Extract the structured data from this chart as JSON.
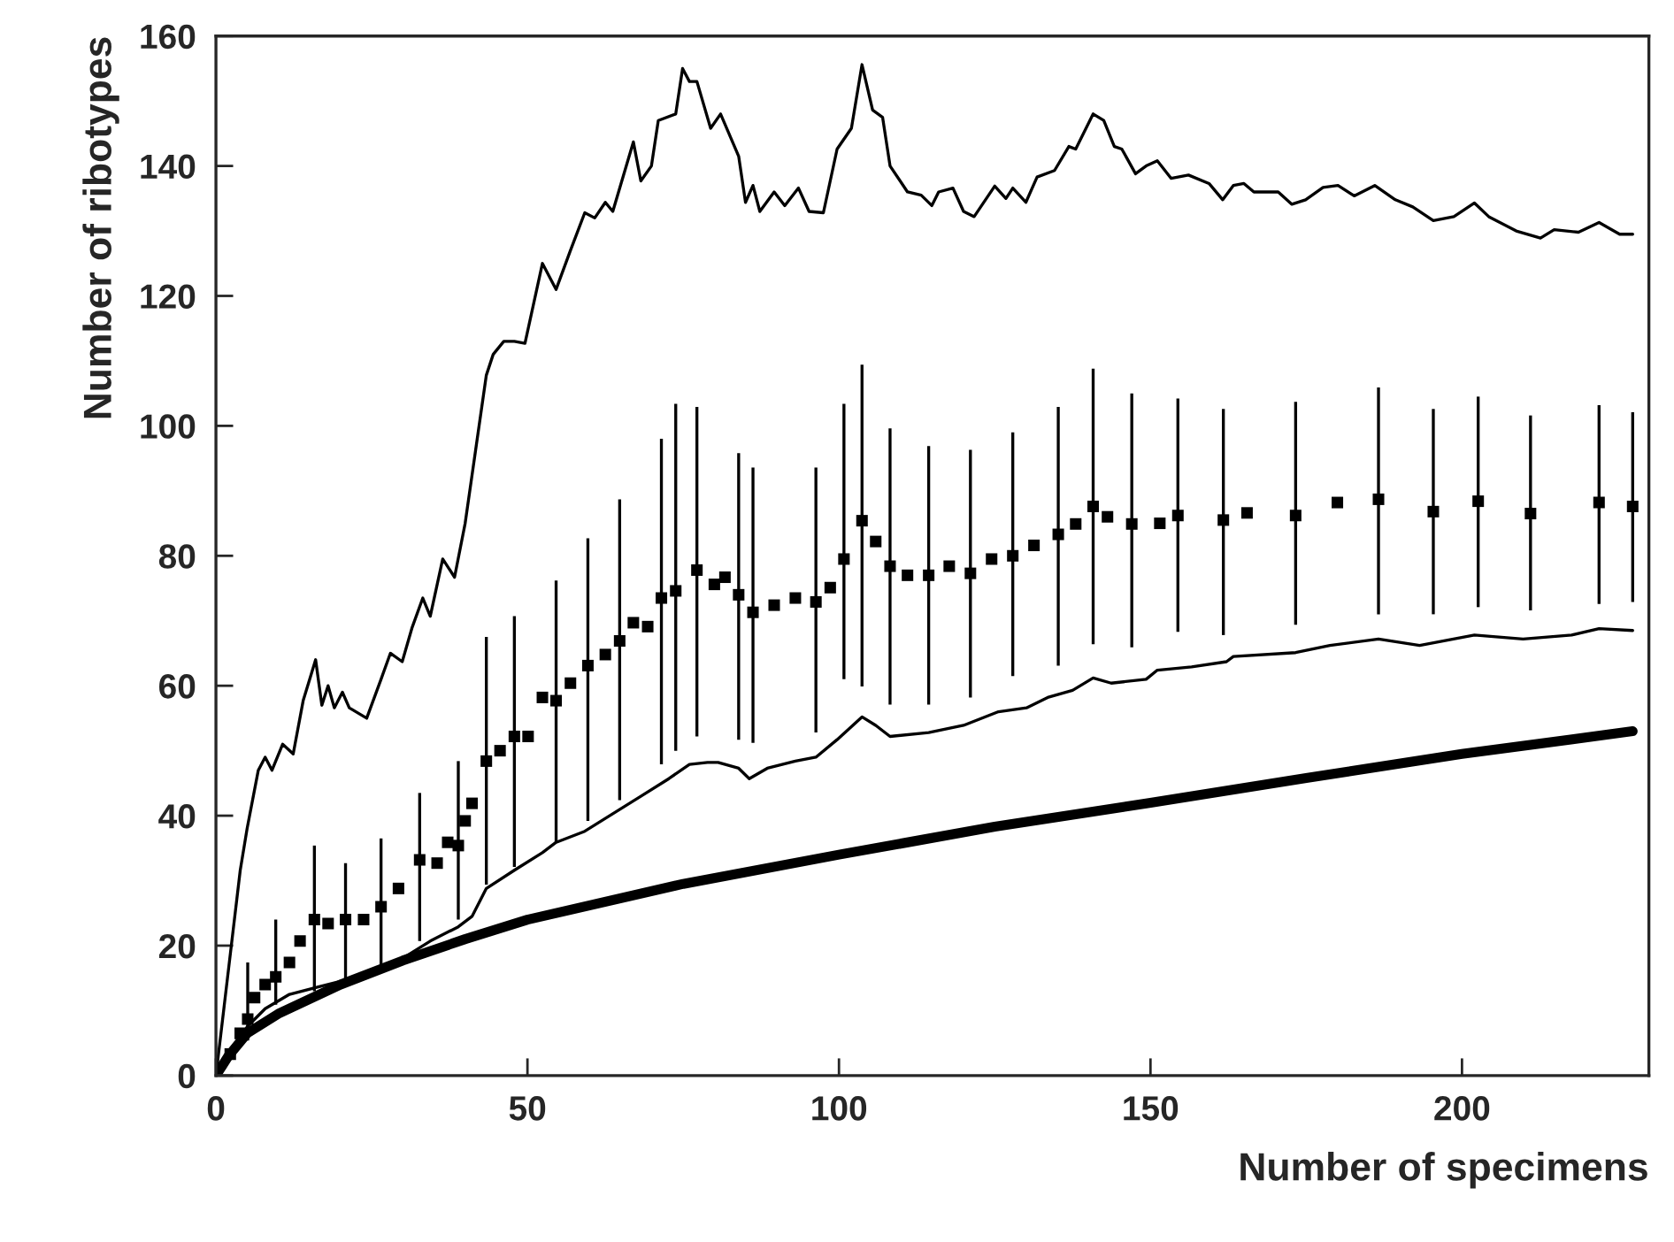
{
  "chart_data": {
    "type": "line",
    "xlabel": "Number of specimens",
    "ylabel": "Number of ribotypes",
    "xlim": [
      0,
      230
    ],
    "xticks": [
      0,
      50,
      100,
      150,
      200
    ],
    "ylim": [
      0,
      160
    ],
    "yticks": [
      0,
      20,
      40,
      60,
      80,
      100,
      120,
      140,
      160
    ],
    "grid": false,
    "legend": false,
    "series": [
      {
        "color": "#000000",
        "line_style": "solid",
        "marker": "none",
        "x": [
          0,
          3.9,
          5,
          6.8,
          7.9,
          9,
          10.7,
          12.4,
          14,
          16,
          17,
          18,
          19,
          20.3,
          21.4,
          24.2,
          26.5,
          28,
          29.9,
          31.5,
          33.2,
          34.4,
          36.4,
          38.3,
          40,
          43.4,
          44.5,
          46.2,
          47.9,
          49.6,
          52.4,
          54.6,
          56.9,
          59.2,
          60.8,
          62.5,
          63.7,
          67,
          68.2,
          69.9,
          71,
          73.8,
          74.9,
          76,
          77.2,
          79.4,
          81,
          83.9,
          85,
          86.2,
          87.3,
          89.6,
          91.3,
          93.5,
          95.2,
          97.5,
          99.7,
          102,
          103.7,
          105.4,
          107,
          108.2,
          111,
          113.2,
          114.9,
          116,
          118.3,
          120,
          121.7,
          125,
          126.8,
          127.9,
          130,
          131.8,
          134.6,
          136.9,
          138,
          140.8,
          142.5,
          144.2,
          145.4,
          147.6,
          149.3,
          151.1,
          153.3,
          156.1,
          159.4,
          161.6,
          163.3,
          165,
          166.6,
          170.5,
          172.7,
          174.9,
          177.7,
          180.1,
          182.7,
          186,
          189.3,
          192.1,
          195.4,
          198.7,
          202,
          204.3,
          208.7,
          212.6,
          214.8,
          218.7,
          222,
          225.3,
          227.4
        ],
        "values": [
          0,
          31.6,
          38,
          47,
          49,
          47,
          51,
          49.5,
          57.7,
          64,
          57,
          60,
          56.6,
          59,
          56.6,
          55,
          61,
          65,
          63.7,
          69,
          73.5,
          70.7,
          79.5,
          76.7,
          85,
          107.8,
          111,
          113,
          113,
          112.7,
          125,
          121,
          127,
          132.8,
          132,
          134.4,
          133,
          143.7,
          137.7,
          140,
          147,
          148,
          155,
          153,
          153,
          145.8,
          148,
          141.5,
          134.4,
          137,
          133,
          136,
          133.9,
          136.6,
          133,
          132.8,
          142.6,
          145.8,
          155.6,
          148.6,
          147.5,
          140,
          136,
          135.5,
          133.9,
          136,
          136.6,
          133,
          132.2,
          136.9,
          135,
          136.6,
          134.4,
          138.3,
          139.3,
          143,
          142.6,
          148,
          147,
          143,
          142.6,
          138.8,
          140,
          140.8,
          138.1,
          138.6,
          137.3,
          134.8,
          137,
          137.3,
          136,
          136,
          134.1,
          134.8,
          136.7,
          137,
          135.4,
          137,
          134.8,
          133.7,
          131.6,
          132.2,
          134.3,
          132.2,
          130,
          128.9,
          130.2,
          129.8,
          131.3,
          129.5,
          129.5
        ]
      },
      {
        "type": "scatter",
        "color": "#000000",
        "marker": "square",
        "x": [
          2.3,
          3.9,
          5.1,
          6.2,
          7.9,
          9.6,
          11.8,
          13.5,
          15.8,
          18,
          20.8,
          23.7,
          26.5,
          29.3,
          32.7,
          35.5,
          37.2,
          38.9,
          40,
          41.1,
          43.4,
          45.6,
          47.9,
          50.1,
          52.4,
          54.6,
          56.9,
          59.7,
          62.5,
          64.8,
          67,
          69.3,
          71.5,
          73.8,
          77.2,
          80,
          81.7,
          83.9,
          86.2,
          89.6,
          93,
          96.3,
          98.6,
          100.8,
          103.7,
          105.9,
          108.2,
          111,
          114.4,
          117.7,
          121.1,
          124.5,
          127.9,
          131.3,
          135.2,
          138,
          140.8,
          143.1,
          147,
          151.5,
          154.4,
          161.7,
          165.5,
          173.3,
          180,
          186.6,
          195.4,
          202.6,
          211,
          222,
          227.4
        ],
        "values": [
          3.3,
          6.5,
          8.7,
          12,
          14,
          15.2,
          17.4,
          20.7,
          24,
          23.4,
          24,
          24,
          26,
          28.8,
          33.2,
          32.7,
          35.9,
          35.4,
          39.2,
          41.9,
          48.4,
          50,
          52.2,
          52.2,
          58.2,
          57.7,
          60.4,
          63.1,
          64.8,
          66.9,
          69.7,
          69.1,
          73.5,
          74.6,
          77.8,
          75.6,
          76.7,
          74,
          71.3,
          72.4,
          73.5,
          72.9,
          75.1,
          79.5,
          85.4,
          82.2,
          78.4,
          77,
          77,
          78.4,
          77.3,
          79.5,
          80,
          81.6,
          83.3,
          84.9,
          87.6,
          86,
          84.9,
          85,
          86.2,
          85.5,
          86.6,
          86.2,
          88.2,
          88.7,
          86.8,
          88.4,
          86.5,
          88.2,
          87.6
        ],
        "errors": [
          null,
          null,
          [
            5.4,
            17.4
          ],
          null,
          null,
          [
            10.9,
            24
          ],
          null,
          null,
          [
            13,
            35.4
          ],
          null,
          [
            14.7,
            32.7
          ],
          null,
          [
            16.3,
            36.5
          ],
          null,
          [
            20.7,
            43.5
          ],
          null,
          null,
          [
            24,
            48.4
          ],
          null,
          null,
          [
            29.4,
            67.5
          ],
          null,
          [
            32.1,
            70.7
          ],
          null,
          null,
          [
            35.9,
            76.2
          ],
          null,
          [
            39.2,
            82.7
          ],
          null,
          [
            42.4,
            88.7
          ],
          null,
          null,
          [
            47.9,
            98
          ],
          [
            50,
            103.4
          ],
          [
            52.2,
            102.9
          ],
          null,
          null,
          [
            51.7,
            95.8
          ],
          [
            51.2,
            93.6
          ],
          null,
          null,
          [
            52.8,
            93.6
          ],
          null,
          [
            61,
            103.4
          ],
          [
            59.9,
            109.4
          ],
          null,
          [
            57.1,
            99.6
          ],
          null,
          [
            57.1,
            96.9
          ],
          null,
          [
            58.2,
            96.3
          ],
          null,
          [
            61.5,
            99
          ],
          null,
          [
            63.1,
            102.9
          ],
          null,
          [
            66.4,
            108.8
          ],
          null,
          [
            65.9,
            105
          ],
          null,
          [
            68.3,
            104.2
          ],
          [
            67.8,
            102.6
          ],
          null,
          [
            69.4,
            103.7
          ],
          null,
          [
            71,
            105.9
          ],
          [
            71,
            102.6
          ],
          [
            72.1,
            104.5
          ],
          [
            71.6,
            101.6
          ],
          [
            72.6,
            103.2
          ],
          [
            72.9,
            102.1
          ]
        ]
      },
      {
        "color": "#000000",
        "line_style": "solid",
        "marker": "none",
        "x": [
          0,
          2.8,
          5.1,
          7.9,
          11.8,
          16.3,
          20.8,
          25.4,
          29.9,
          34.4,
          38.9,
          41.1,
          43.4,
          47.9,
          52.4,
          54.6,
          59.2,
          63.7,
          68.2,
          72.7,
          76,
          78.9,
          80.6,
          83.9,
          85.6,
          88.5,
          93,
          96.3,
          99.7,
          103.7,
          105.9,
          108.2,
          114.4,
          120,
          125.6,
          130.1,
          133.5,
          137.5,
          140.8,
          143.7,
          149.3,
          151.1,
          156.6,
          162.2,
          163.3,
          173.3,
          178.8,
          186.6,
          193.2,
          202,
          209.8,
          217.6,
          222,
          227.4
        ],
        "values": [
          0,
          4.4,
          7.6,
          10.3,
          12.5,
          13.6,
          14.7,
          15.8,
          18,
          20.7,
          22.9,
          24.5,
          28.8,
          31.6,
          34.3,
          35.9,
          37.6,
          40.3,
          43,
          45.7,
          47.9,
          48.2,
          48.2,
          47.3,
          45.7,
          47.3,
          48.4,
          49,
          51.7,
          55.2,
          53.9,
          52.2,
          52.8,
          53.9,
          56,
          56.6,
          58.2,
          59.3,
          61.2,
          60.4,
          61,
          62.4,
          62.9,
          63.7,
          64.5,
          65.1,
          66.2,
          67.2,
          66.2,
          67.8,
          67.2,
          67.8,
          68.8,
          68.5
        ]
      },
      {
        "color": "#000000",
        "line_style": "solid",
        "marker": "none",
        "x": [
          0,
          2,
          5,
          10,
          20,
          30,
          40,
          50,
          75,
          100,
          125,
          150,
          175,
          200,
          227.4
        ],
        "values": [
          0,
          3,
          6.5,
          9.5,
          14,
          17.7,
          21,
          24,
          29.5,
          34,
          38.3,
          42,
          45.8,
          49.5,
          53
        ]
      }
    ]
  }
}
